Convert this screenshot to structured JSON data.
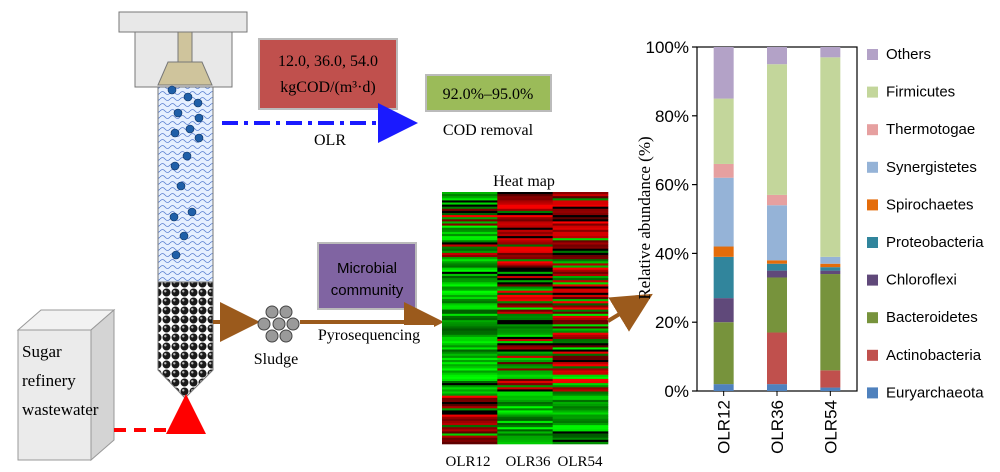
{
  "reactor": {
    "olr_box": {
      "line1": "12.0, 36.0, 54.0",
      "line2": "kgCOD/(m³·d)"
    },
    "olr_label": "OLR",
    "cod_box": "92.0%–95.0%",
    "cod_label": "COD removal",
    "wastewater_label": [
      "Sugar",
      "refinery",
      "wastewater"
    ],
    "sludge_label": "Sludge",
    "pyro_label": "Pyrosequencing",
    "microbial_box": [
      "Microbial",
      "community"
    ]
  },
  "heatmap": {
    "title": "Heat map",
    "columns": [
      "OLR12",
      "OLR36",
      "OLR54"
    ]
  },
  "colors": {
    "olr_box": "#c0504d",
    "cod_box": "#9bbb59",
    "microbial_box": "#8064a2",
    "arrow_brown": "#9b5a1c",
    "arrow_blue": "#1a1aff",
    "arrow_red": "#ff0000",
    "bead_blue": "#1f5fa8"
  },
  "chart_data": {
    "type": "bar",
    "stacked": true,
    "title": "",
    "xlabel": "",
    "ylabel": "Relative abundance (%)",
    "ylim": [
      0,
      100
    ],
    "yticks": [
      "0%",
      "20%",
      "40%",
      "60%",
      "80%",
      "100%"
    ],
    "categories": [
      "OLR12",
      "OLR36",
      "OLR54"
    ],
    "legend_position": "right",
    "series": [
      {
        "name": "Euryarchaeota",
        "color": "#4f81bd",
        "values": [
          2,
          2,
          1
        ]
      },
      {
        "name": "Actinobacteria",
        "color": "#c0504d",
        "values": [
          0,
          15,
          5
        ]
      },
      {
        "name": "Bacteroidetes",
        "color": "#77933c",
        "values": [
          18,
          16,
          28
        ]
      },
      {
        "name": "Chloroflexi",
        "color": "#60497a",
        "values": [
          7,
          2,
          1
        ]
      },
      {
        "name": "Proteobacteria",
        "color": "#31859c",
        "values": [
          12,
          2,
          1
        ]
      },
      {
        "name": "Spirochaetes",
        "color": "#e46c0a",
        "values": [
          3,
          1,
          1
        ]
      },
      {
        "name": "Synergistetes",
        "color": "#95b3d7",
        "values": [
          20,
          16,
          2
        ]
      },
      {
        "name": "Thermotogae",
        "color": "#e6a0a0",
        "values": [
          4,
          3,
          0
        ]
      },
      {
        "name": "Firmicutes",
        "color": "#c3d69b",
        "values": [
          19,
          38,
          58
        ]
      },
      {
        "name": "Others",
        "color": "#b3a2c7",
        "values": [
          15,
          5,
          3
        ]
      }
    ]
  }
}
